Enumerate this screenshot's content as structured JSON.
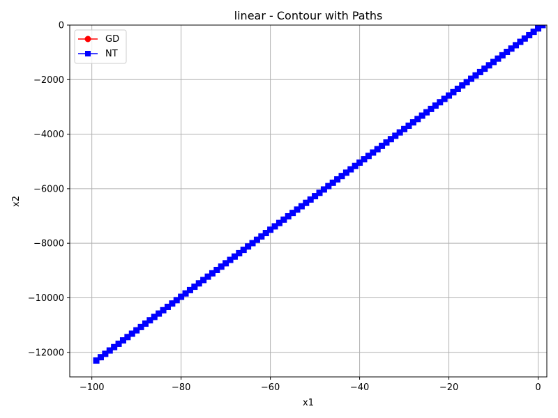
{
  "colors": {
    "gd": "#ff0000",
    "nt": "#0000ff",
    "grid": "#b0b0b0",
    "axis": "#000000",
    "background": "#ffffff"
  },
  "chart_data": {
    "type": "line",
    "title": "linear - Contour with Paths",
    "xlabel": "x1",
    "ylabel": "x2",
    "xlim": [
      -104.95,
      1.95
    ],
    "ylim": [
      -12900,
      0
    ],
    "grid": true,
    "legend": "top-left",
    "x_ticks": [
      -100,
      -80,
      -60,
      -40,
      -20,
      0
    ],
    "x_tick_labels": [
      "−100",
      "−80",
      "−60",
      "−40",
      "−20",
      "0"
    ],
    "y_ticks": [
      0,
      -2000,
      -4000,
      -6000,
      -8000,
      -10000,
      -12000
    ],
    "y_tick_labels": [
      "0",
      "−2000",
      "−4000",
      "−6000",
      "−8000",
      "−10000",
      "−12000"
    ],
    "series": [
      {
        "name": "GD",
        "color": "#ff0000",
        "marker": "circle",
        "start": [
          1,
          0
        ],
        "end": [
          -99,
          -12300
        ],
        "count": 101
      },
      {
        "name": "NT",
        "color": "#0000ff",
        "marker": "square",
        "start": [
          1,
          0
        ],
        "end": [
          -99,
          -12300
        ],
        "count": 101
      }
    ]
  }
}
